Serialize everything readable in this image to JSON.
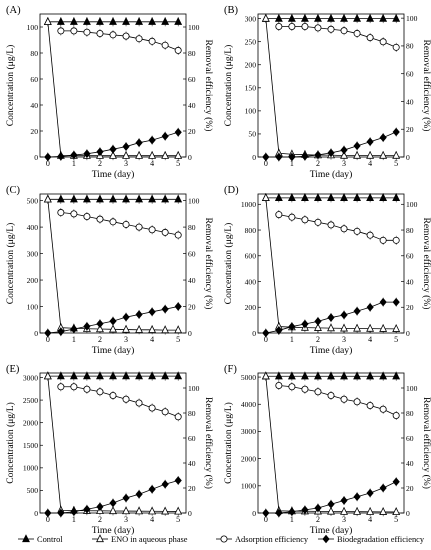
{
  "figure": {
    "legend": [
      {
        "label": "Control",
        "marker": "filled-triangle"
      },
      {
        "label": "ENO in aqueous phase",
        "marker": "open-triangle"
      },
      {
        "label": "Adsorption efficiency",
        "marker": "open-circle"
      },
      {
        "label": "Biodegradation efficiency",
        "marker": "filled-diamond"
      }
    ]
  },
  "chart_data": [
    {
      "panel": "(A)",
      "type": "line",
      "xlabel": "Time (day)",
      "ylabel": "Concentration (μg/L)",
      "y2label": "Removal efficiency (%)",
      "xlim": [
        -0.3,
        5.3
      ],
      "xticks": [
        0,
        1,
        2,
        3,
        4,
        5
      ],
      "ylim": [
        0,
        110
      ],
      "yticks": [
        0,
        20,
        40,
        60,
        80,
        100
      ],
      "y2lim": [
        0,
        110
      ],
      "y2ticks": [
        0,
        20,
        40,
        60,
        80,
        100
      ],
      "series": [
        {
          "name": "Control",
          "axis": "left",
          "x": [
            0,
            0.5,
            1,
            1.5,
            2,
            2.5,
            3,
            3.5,
            4,
            4.5,
            5
          ],
          "y": [
            104,
            104,
            104,
            104,
            104,
            104,
            104,
            104,
            104,
            104,
            104
          ]
        },
        {
          "name": "ENO in aqueous phase",
          "axis": "left",
          "x": [
            0,
            0.5,
            1,
            1.5,
            2,
            2.5,
            3,
            3.5,
            4,
            4.5,
            5
          ],
          "y": [
            104,
            1,
            1,
            1,
            1,
            1,
            1,
            1,
            1,
            1,
            1
          ]
        },
        {
          "name": "Adsorption efficiency",
          "axis": "right",
          "x": [
            0.5,
            1,
            1.5,
            2,
            2.5,
            3,
            3.5,
            4,
            4.5,
            5
          ],
          "y": [
            97,
            97,
            96,
            95,
            94,
            93,
            91,
            89,
            86,
            82
          ]
        },
        {
          "name": "Biodegradation efficiency",
          "axis": "right",
          "x": [
            0,
            0.5,
            1,
            1.5,
            2,
            2.5,
            3,
            3.5,
            4,
            4.5,
            5
          ],
          "y": [
            0,
            0.5,
            1.5,
            2.5,
            4,
            6,
            8,
            11,
            13,
            16,
            19
          ]
        }
      ]
    },
    {
      "panel": "(B)",
      "type": "line",
      "xlabel": "Time (day)",
      "ylabel": "Concentration (μg/L)",
      "y2label": "Removal efficiency (%)",
      "xlim": [
        -0.3,
        5.3
      ],
      "xticks": [
        0,
        1,
        2,
        3,
        4,
        5
      ],
      "ylim": [
        0,
        310
      ],
      "yticks": [
        0,
        50,
        100,
        150,
        200,
        250,
        300
      ],
      "y2lim": [
        0,
        103
      ],
      "y2ticks": [
        0,
        20,
        40,
        60,
        80,
        100
      ],
      "series": [
        {
          "name": "Control",
          "axis": "left",
          "x": [
            0,
            0.5,
            1,
            1.5,
            2,
            2.5,
            3,
            3.5,
            4,
            4.5,
            5
          ],
          "y": [
            300,
            300,
            300,
            300,
            300,
            300,
            300,
            300,
            300,
            300,
            300
          ]
        },
        {
          "name": "ENO in aqueous phase",
          "axis": "left",
          "x": [
            0,
            0.5,
            1,
            1.5,
            2,
            2.5,
            3,
            3.5,
            4,
            4.5,
            5
          ],
          "y": [
            300,
            8,
            6,
            5,
            4,
            4,
            3,
            3,
            3,
            3,
            3
          ]
        },
        {
          "name": "Adsorption efficiency",
          "axis": "right",
          "x": [
            0.5,
            1,
            1.5,
            2,
            2.5,
            3,
            3.5,
            4,
            4.5,
            5
          ],
          "y": [
            94,
            94,
            94,
            93,
            92,
            91,
            89,
            86,
            83,
            79
          ]
        },
        {
          "name": "Biodegradation efficiency",
          "axis": "right",
          "x": [
            0,
            0.5,
            1,
            1.5,
            2,
            2.5,
            3,
            3.5,
            4,
            4.5,
            5
          ],
          "y": [
            0,
            0,
            0,
            0.5,
            1.5,
            3,
            5,
            8,
            11,
            14,
            18
          ]
        }
      ]
    },
    {
      "panel": "(C)",
      "type": "line",
      "xlabel": "Time (day)",
      "ylabel": "Concentration (μg/L)",
      "y2label": "Removal efficiency (%)",
      "xlim": [
        -0.3,
        5.3
      ],
      "xticks": [
        0,
        1,
        2,
        3,
        4,
        5
      ],
      "ylim": [
        0,
        525
      ],
      "yticks": [
        0,
        100,
        200,
        300,
        400,
        500
      ],
      "y2lim": [
        0,
        105
      ],
      "y2ticks": [
        0,
        20,
        40,
        60,
        80,
        100
      ],
      "series": [
        {
          "name": "Control",
          "axis": "left",
          "x": [
            0,
            0.5,
            1,
            1.5,
            2,
            2.5,
            3,
            3.5,
            4,
            4.5,
            5
          ],
          "y": [
            505,
            505,
            505,
            505,
            505,
            505,
            505,
            505,
            505,
            505,
            505
          ]
        },
        {
          "name": "ENO in aqueous phase",
          "axis": "left",
          "x": [
            0,
            0.5,
            1,
            1.5,
            2,
            2.5,
            3,
            3.5,
            4,
            4.5,
            5
          ],
          "y": [
            505,
            20,
            18,
            16,
            15,
            14,
            13,
            12,
            12,
            11,
            11
          ]
        },
        {
          "name": "Adsorption efficiency",
          "axis": "right",
          "x": [
            0.5,
            1,
            1.5,
            2,
            2.5,
            3,
            3.5,
            4,
            4.5,
            5
          ],
          "y": [
            91,
            90,
            88,
            86,
            84,
            82,
            80,
            78,
            76,
            74
          ]
        },
        {
          "name": "Biodegradation efficiency",
          "axis": "right",
          "x": [
            0,
            0.5,
            1,
            1.5,
            2,
            2.5,
            3,
            3.5,
            4,
            4.5,
            5
          ],
          "y": [
            0,
            1,
            3,
            5,
            7,
            9,
            12,
            14,
            16,
            18,
            20
          ]
        }
      ]
    },
    {
      "panel": "(D)",
      "type": "line",
      "xlabel": "Time (day)",
      "ylabel": "Concentration (μg/L)",
      "y2label": "Removal efficiency (%)",
      "xlim": [
        -0.3,
        5.3
      ],
      "xticks": [
        0,
        1,
        2,
        3,
        4,
        5
      ],
      "ylim": [
        0,
        1080
      ],
      "yticks": [
        0,
        200,
        400,
        600,
        800,
        1000
      ],
      "y2lim": [
        0,
        108
      ],
      "y2ticks": [
        0,
        20,
        40,
        60,
        80,
        100
      ],
      "series": [
        {
          "name": "Control",
          "axis": "left",
          "x": [
            0,
            0.5,
            1,
            1.5,
            2,
            2.5,
            3,
            3.5,
            4,
            4.5,
            5
          ],
          "y": [
            1050,
            1050,
            1050,
            1050,
            1050,
            1050,
            1050,
            1050,
            1050,
            1050,
            1050
          ]
        },
        {
          "name": "ENO in aqueous phase",
          "axis": "left",
          "x": [
            0,
            0.5,
            1,
            1.5,
            2,
            2.5,
            3,
            3.5,
            4,
            4.5,
            5
          ],
          "y": [
            1050,
            50,
            45,
            42,
            40,
            38,
            36,
            35,
            34,
            33,
            32
          ]
        },
        {
          "name": "Adsorption efficiency",
          "axis": "right",
          "x": [
            0.5,
            1,
            1.5,
            2,
            2.5,
            3,
            3.5,
            4,
            4.5,
            5
          ],
          "y": [
            92,
            90,
            88,
            86,
            84,
            81,
            79,
            76,
            72,
            72
          ]
        },
        {
          "name": "Biodegradation efficiency",
          "axis": "right",
          "x": [
            0,
            0.5,
            1,
            1.5,
            2,
            2.5,
            3,
            3.5,
            4,
            4.5,
            5
          ],
          "y": [
            0,
            2,
            5,
            7,
            9,
            12,
            14,
            17,
            20,
            24,
            24
          ]
        }
      ]
    },
    {
      "panel": "(E)",
      "type": "line",
      "xlabel": "Time (day)",
      "ylabel": "Concentration (μg/L)",
      "y2label": "Removal efficiency (%)",
      "xlim": [
        -0.3,
        5.3
      ],
      "xticks": [
        0,
        1,
        2,
        3,
        4,
        5
      ],
      "ylim": [
        0,
        3100
      ],
      "yticks": [
        0,
        500,
        1000,
        1500,
        2000,
        2500,
        3000
      ],
      "y2lim": [
        0,
        112
      ],
      "y2ticks": [
        0,
        20,
        40,
        60,
        80,
        100
      ],
      "series": [
        {
          "name": "Control",
          "axis": "left",
          "x": [
            0,
            0.5,
            1,
            1.5,
            2,
            2.5,
            3,
            3.5,
            4,
            4.5,
            5
          ],
          "y": [
            3030,
            3030,
            3030,
            3030,
            3030,
            3030,
            3030,
            3030,
            3030,
            3030,
            3030
          ]
        },
        {
          "name": "ENO in aqueous phase",
          "axis": "left",
          "x": [
            0,
            0.5,
            1,
            1.5,
            2,
            2.5,
            3,
            3.5,
            4,
            4.5,
            5
          ],
          "y": [
            3030,
            60,
            55,
            50,
            48,
            45,
            43,
            40,
            38,
            36,
            35
          ]
        },
        {
          "name": "Adsorption efficiency",
          "axis": "right",
          "x": [
            0.5,
            1,
            1.5,
            2,
            2.5,
            3,
            3.5,
            4,
            4.5,
            5
          ],
          "y": [
            101,
            101,
            99,
            97,
            94,
            91,
            88,
            84,
            81,
            77
          ]
        },
        {
          "name": "Biodegradation efficiency",
          "axis": "right",
          "x": [
            0,
            0.5,
            1,
            1.5,
            2,
            2.5,
            3,
            3.5,
            4,
            4.5,
            5
          ],
          "y": [
            0,
            0,
            1,
            3,
            5,
            8,
            12,
            15,
            19,
            23,
            26
          ]
        }
      ]
    },
    {
      "panel": "(F)",
      "type": "line",
      "xlabel": "Time (day)",
      "ylabel": "Concentration (μg/L)",
      "y2label": "Removal efficiency (%)",
      "xlim": [
        -0.3,
        5.3
      ],
      "xticks": [
        0,
        1,
        2,
        3,
        4,
        5
      ],
      "ylim": [
        0,
        5150
      ],
      "yticks": [
        0,
        1000,
        2000,
        3000,
        4000,
        5000
      ],
      "y2lim": [
        0,
        112
      ],
      "y2ticks": [
        0,
        20,
        40,
        60,
        80,
        100
      ],
      "series": [
        {
          "name": "Control",
          "axis": "left",
          "x": [
            0,
            0.5,
            1,
            1.5,
            2,
            2.5,
            3,
            3.5,
            4,
            4.5,
            5
          ],
          "y": [
            5030,
            5030,
            5030,
            5030,
            5030,
            5030,
            5030,
            5030,
            5030,
            5030,
            5030
          ]
        },
        {
          "name": "ENO in aqueous phase",
          "axis": "left",
          "x": [
            0,
            0.5,
            1,
            1.5,
            2,
            2.5,
            3,
            3.5,
            4,
            4.5,
            5
          ],
          "y": [
            5030,
            80,
            70,
            65,
            60,
            55,
            50,
            48,
            45,
            42,
            40
          ]
        },
        {
          "name": "Adsorption efficiency",
          "axis": "right",
          "x": [
            0.5,
            1,
            1.5,
            2,
            2.5,
            3,
            3.5,
            4,
            4.5,
            5
          ],
          "y": [
            102,
            101,
            99,
            97,
            94,
            91,
            89,
            86,
            83,
            78
          ]
        },
        {
          "name": "Biodegradation efficiency",
          "axis": "right",
          "x": [
            0,
            0.5,
            1,
            1.5,
            2,
            2.5,
            3,
            3.5,
            4,
            4.5,
            5
          ],
          "y": [
            0,
            0,
            1,
            2.5,
            4,
            7,
            10,
            13,
            16,
            20,
            25
          ]
        }
      ]
    }
  ]
}
